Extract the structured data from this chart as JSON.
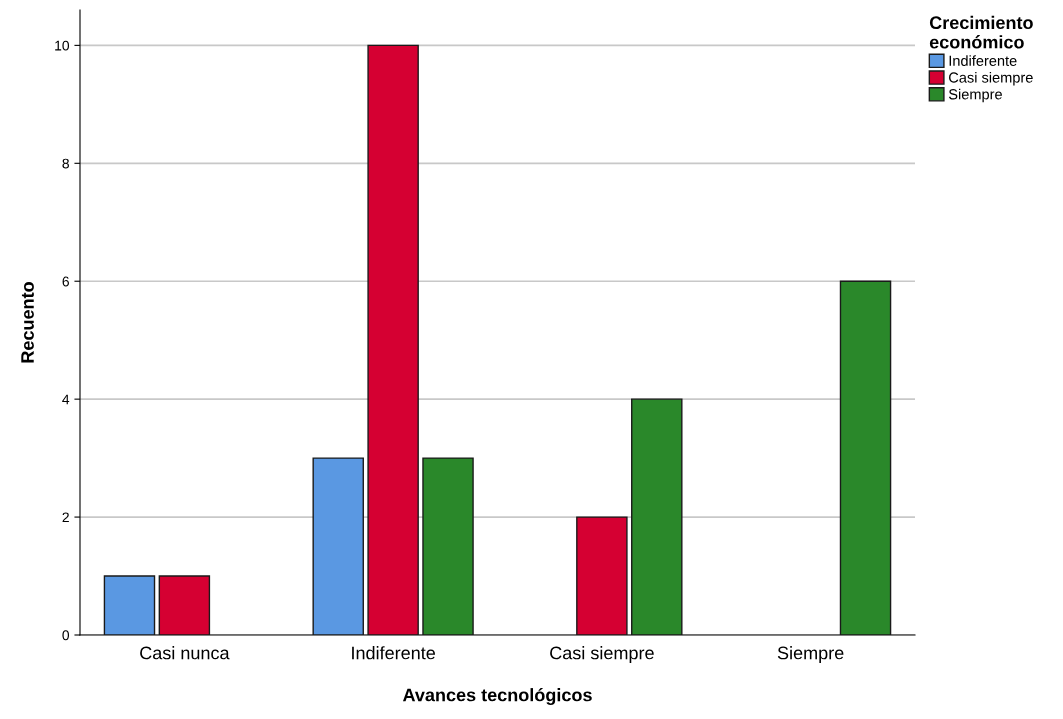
{
  "chart_data": {
    "type": "bar",
    "xlabel": "Avances tecnológicos",
    "ylabel": "Recuento",
    "legend_title": "Crecimiento\neconómico",
    "categories": [
      "Casi nunca",
      "Indiferente",
      "Casi siempre",
      "Siempre"
    ],
    "series": [
      {
        "name": "Indiferente",
        "color": "#5a98e2",
        "values": [
          1,
          3,
          null,
          null
        ]
      },
      {
        "name": "Casi siempre",
        "color": "#d50032",
        "values": [
          1,
          10,
          2,
          null
        ]
      },
      {
        "name": "Siempre",
        "color": "#2a882a",
        "values": [
          null,
          3,
          4,
          6
        ]
      }
    ],
    "ylim": [
      0,
      10.6
    ],
    "yticks": [
      0,
      2,
      4,
      6,
      8,
      10
    ],
    "grid": "y",
    "legend": "top right"
  }
}
